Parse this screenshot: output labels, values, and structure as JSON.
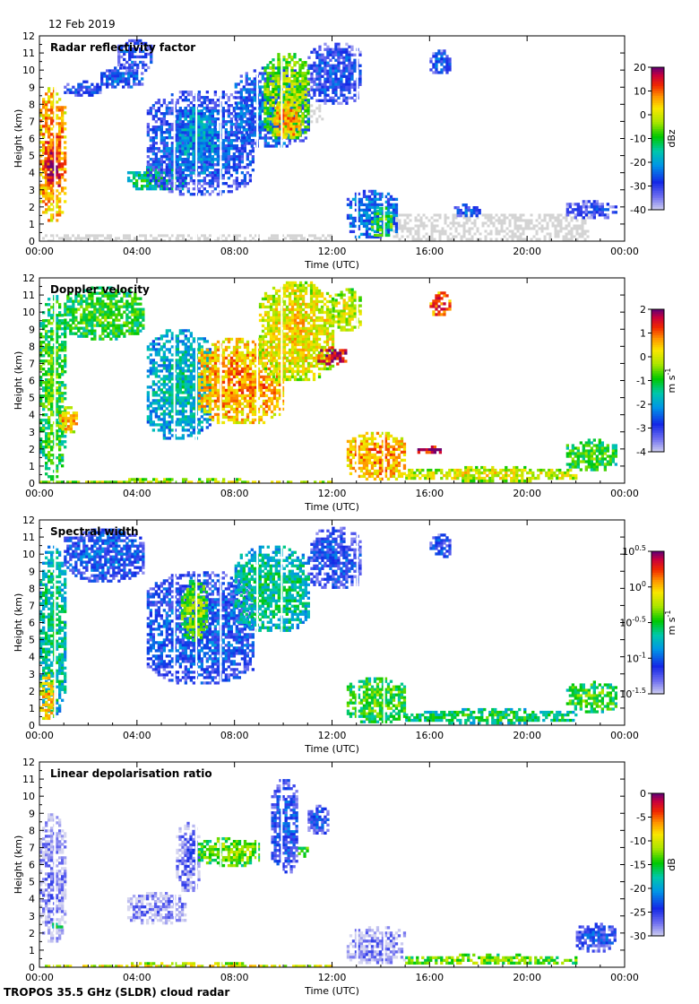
{
  "date": "12 Feb 2019",
  "footer": "TROPOS 35.5 GHz (SLDR) cloud radar",
  "colors": {
    "background": "#ffffff",
    "axis": "#000000",
    "clear_air": "#d4d4d4"
  },
  "chart_data": [
    {
      "type": "heatmap",
      "title": "Radar reflectivity factor",
      "xlabel": "Time (UTC)",
      "ylabel": "Height (km)",
      "x_ticks": [
        "00:00",
        "04:00",
        "08:00",
        "12:00",
        "16:00",
        "20:00",
        "00:00"
      ],
      "y_ticks": [
        "0",
        "1",
        "2",
        "3",
        "4",
        "5",
        "6",
        "7",
        "8",
        "9",
        "10",
        "11",
        "12"
      ],
      "xlim_hours": [
        0,
        24
      ],
      "ylim_km": [
        0,
        12
      ],
      "colorbar": {
        "label": "dBz",
        "ticks": [
          "20",
          "10",
          "0",
          "-10",
          "-20",
          "-30",
          "-40"
        ],
        "range": [
          -40,
          20
        ]
      },
      "cloud_regions": [
        {
          "t0": 0.0,
          "t1": 1.0,
          "h0": 1.2,
          "h1": 9.0,
          "v": 0.82
        },
        {
          "t0": 0.2,
          "t1": 0.8,
          "h0": 3.0,
          "h1": 6.0,
          "v": 0.95
        },
        {
          "t0": 1.0,
          "t1": 2.5,
          "h0": 8.6,
          "h1": 9.4,
          "v": 0.22
        },
        {
          "t0": 2.5,
          "t1": 4.2,
          "h0": 9.0,
          "h1": 10.2,
          "v": 0.25
        },
        {
          "t0": 3.2,
          "t1": 4.6,
          "h0": 10.0,
          "h1": 11.8,
          "v": 0.22
        },
        {
          "t0": 3.6,
          "t1": 6.0,
          "h0": 3.0,
          "h1": 4.4,
          "v": 0.48
        },
        {
          "t0": 4.4,
          "t1": 8.8,
          "h0": 2.8,
          "h1": 8.8,
          "v": 0.24
        },
        {
          "t0": 5.6,
          "t1": 7.2,
          "h0": 4.0,
          "h1": 8.0,
          "v": 0.35
        },
        {
          "t0": 8.0,
          "t1": 11.0,
          "h0": 5.5,
          "h1": 10.2,
          "v": 0.28
        },
        {
          "t0": 9.2,
          "t1": 11.0,
          "h0": 6.0,
          "h1": 11.0,
          "v": 0.62
        },
        {
          "t0": 9.6,
          "t1": 10.6,
          "h0": 6.0,
          "h1": 8.2,
          "v": 0.8
        },
        {
          "t0": 11.0,
          "t1": 13.2,
          "h0": 8.0,
          "h1": 11.6,
          "v": 0.22
        },
        {
          "t0": 16.0,
          "t1": 16.8,
          "h0": 9.8,
          "h1": 11.2,
          "v": 0.22
        },
        {
          "t0": 12.6,
          "t1": 14.6,
          "h0": 0.2,
          "h1": 3.0,
          "v": 0.3
        },
        {
          "t0": 13.6,
          "t1": 14.4,
          "h0": 0.3,
          "h1": 2.0,
          "v": 0.55
        },
        {
          "t0": 17.0,
          "t1": 18.0,
          "h0": 1.5,
          "h1": 2.2,
          "v": 0.24
        },
        {
          "t0": 21.6,
          "t1": 23.6,
          "h0": 1.4,
          "h1": 2.4,
          "v": 0.18
        }
      ],
      "clear_air_regions": [
        {
          "t0": 14.5,
          "t1": 22.5,
          "h0": 0.0,
          "h1": 1.6
        },
        {
          "t0": 11.0,
          "t1": 11.6,
          "h0": 7.0,
          "h1": 8.0
        },
        {
          "t0": 0.0,
          "t1": 12.0,
          "h0": 0.0,
          "h1": 0.4
        }
      ]
    },
    {
      "type": "heatmap",
      "title": "Doppler velocity",
      "xlabel": "Time (UTC)",
      "ylabel": "Height (km)",
      "x_ticks": [
        "00:00",
        "04:00",
        "08:00",
        "12:00",
        "16:00",
        "20:00",
        "00:00"
      ],
      "y_ticks": [
        "0",
        "1",
        "2",
        "3",
        "4",
        "5",
        "6",
        "7",
        "8",
        "9",
        "10",
        "11",
        "12"
      ],
      "xlim_hours": [
        0,
        24
      ],
      "ylim_km": [
        0,
        12
      ],
      "colorbar": {
        "label": "m s",
        "label_exp": "-1",
        "ticks": [
          "2",
          "1",
          "0",
          "-1",
          "-2",
          "-3",
          "-4"
        ],
        "range": [
          -4,
          2
        ]
      },
      "cloud_regions": [
        {
          "t0": 0.0,
          "t1": 1.0,
          "h0": 0.3,
          "h1": 11.0,
          "v": 0.55
        },
        {
          "t0": 1.0,
          "t1": 4.2,
          "h0": 8.5,
          "h1": 11.5,
          "v": 0.55
        },
        {
          "t0": 0.8,
          "t1": 1.5,
          "h0": 3.0,
          "h1": 4.5,
          "v": 0.78
        },
        {
          "t0": 4.4,
          "t1": 7.0,
          "h0": 2.6,
          "h1": 9.0,
          "v": 0.4
        },
        {
          "t0": 6.5,
          "t1": 10.0,
          "h0": 3.5,
          "h1": 8.5,
          "v": 0.8
        },
        {
          "t0": 9.0,
          "t1": 12.0,
          "h0": 6.0,
          "h1": 11.8,
          "v": 0.72
        },
        {
          "t0": 11.4,
          "t1": 12.6,
          "h0": 7.0,
          "h1": 8.0,
          "v": 0.95
        },
        {
          "t0": 12.0,
          "t1": 13.2,
          "h0": 9.0,
          "h1": 11.4,
          "v": 0.68
        },
        {
          "t0": 16.0,
          "t1": 16.8,
          "h0": 9.8,
          "h1": 11.2,
          "v": 0.88
        },
        {
          "t0": 12.6,
          "t1": 15.0,
          "h0": 0.2,
          "h1": 3.0,
          "v": 0.8
        },
        {
          "t0": 15.0,
          "t1": 22.0,
          "h0": 0.2,
          "h1": 1.0,
          "v": 0.7
        },
        {
          "t0": 15.5,
          "t1": 16.5,
          "h0": 1.8,
          "h1": 2.2,
          "v": 0.96
        },
        {
          "t0": 21.6,
          "t1": 23.6,
          "h0": 0.8,
          "h1": 2.6,
          "v": 0.55
        },
        {
          "t0": 0.0,
          "t1": 12.0,
          "h0": 0.1,
          "h1": 0.3,
          "v": 0.68
        }
      ]
    },
    {
      "type": "heatmap",
      "title": "Spectral width",
      "xlabel": "Time (UTC)",
      "ylabel": "Height (km)",
      "x_ticks": [
        "00:00",
        "04:00",
        "08:00",
        "12:00",
        "16:00",
        "20:00",
        "00:00"
      ],
      "y_ticks": [
        "0",
        "1",
        "2",
        "3",
        "4",
        "5",
        "6",
        "7",
        "8",
        "9",
        "10",
        "11",
        "12"
      ],
      "xlim_hours": [
        0,
        24
      ],
      "ylim_km": [
        0,
        12
      ],
      "colorbar": {
        "label": "m s",
        "label_exp": "-1",
        "ticks": [
          "10^0.5",
          "10^0",
          "10^-0.5",
          "10^-1",
          "10^-1.5"
        ],
        "range": [
          -1.5,
          0.5
        ]
      },
      "cloud_regions": [
        {
          "t0": 0.0,
          "t1": 1.0,
          "h0": 0.5,
          "h1": 10.5,
          "v": 0.45
        },
        {
          "t0": 0.0,
          "t1": 0.6,
          "h0": 0.3,
          "h1": 3.0,
          "v": 0.75
        },
        {
          "t0": 1.0,
          "t1": 4.2,
          "h0": 8.5,
          "h1": 11.5,
          "v": 0.25
        },
        {
          "t0": 4.4,
          "t1": 8.8,
          "h0": 2.5,
          "h1": 9.0,
          "v": 0.25
        },
        {
          "t0": 5.8,
          "t1": 6.8,
          "h0": 5.0,
          "h1": 8.5,
          "v": 0.6
        },
        {
          "t0": 8.0,
          "t1": 11.0,
          "h0": 5.5,
          "h1": 10.5,
          "v": 0.45
        },
        {
          "t0": 11.0,
          "t1": 13.2,
          "h0": 8.0,
          "h1": 11.6,
          "v": 0.22
        },
        {
          "t0": 16.0,
          "t1": 16.8,
          "h0": 9.8,
          "h1": 11.2,
          "v": 0.22
        },
        {
          "t0": 12.6,
          "t1": 15.0,
          "h0": 0.2,
          "h1": 2.8,
          "v": 0.55
        },
        {
          "t0": 15.0,
          "t1": 22.0,
          "h0": 0.2,
          "h1": 1.0,
          "v": 0.5
        },
        {
          "t0": 21.6,
          "t1": 23.6,
          "h0": 0.8,
          "h1": 2.6,
          "v": 0.55
        }
      ]
    },
    {
      "type": "heatmap",
      "title": "Linear depolarisation ratio",
      "xlabel": "Time (UTC)",
      "ylabel": "Height (km)",
      "x_ticks": [
        "00:00",
        "04:00",
        "08:00",
        "12:00",
        "16:00",
        "20:00",
        "00:00"
      ],
      "y_ticks": [
        "0",
        "1",
        "2",
        "3",
        "4",
        "5",
        "6",
        "7",
        "8",
        "9",
        "10",
        "11",
        "12"
      ],
      "xlim_hours": [
        0,
        24
      ],
      "ylim_km": [
        0,
        12
      ],
      "colorbar": {
        "label": "dB",
        "ticks": [
          "0",
          "-5",
          "-10",
          "-15",
          "-20",
          "-25",
          "-30"
        ],
        "range": [
          -30,
          0
        ]
      },
      "cloud_regions": [
        {
          "t0": 0.0,
          "t1": 1.0,
          "h0": 1.5,
          "h1": 9.0,
          "v": 0.08
        },
        {
          "t0": 0.3,
          "t1": 0.9,
          "h0": 2.4,
          "h1": 2.6,
          "v": 0.5
        },
        {
          "t0": 3.6,
          "t1": 6.0,
          "h0": 2.6,
          "h1": 4.4,
          "v": 0.08
        },
        {
          "t0": 5.6,
          "t1": 6.5,
          "h0": 4.5,
          "h1": 8.5,
          "v": 0.12
        },
        {
          "t0": 6.5,
          "t1": 9.0,
          "h0": 6.0,
          "h1": 7.6,
          "v": 0.6
        },
        {
          "t0": 9.5,
          "t1": 10.6,
          "h0": 5.5,
          "h1": 11.0,
          "v": 0.22
        },
        {
          "t0": 10.6,
          "t1": 11.0,
          "h0": 6.5,
          "h1": 7.2,
          "v": 0.55
        },
        {
          "t0": 11.0,
          "t1": 11.8,
          "h0": 7.8,
          "h1": 9.5,
          "v": 0.22
        },
        {
          "t0": 12.6,
          "t1": 15.0,
          "h0": 0.2,
          "h1": 2.4,
          "v": 0.08
        },
        {
          "t0": 15.0,
          "t1": 22.0,
          "h0": 0.2,
          "h1": 0.8,
          "v": 0.6
        },
        {
          "t0": 22.0,
          "t1": 23.6,
          "h0": 1.0,
          "h1": 2.6,
          "v": 0.2
        },
        {
          "t0": 0.0,
          "t1": 12.0,
          "h0": 0.1,
          "h1": 0.3,
          "v": 0.72
        }
      ]
    }
  ]
}
